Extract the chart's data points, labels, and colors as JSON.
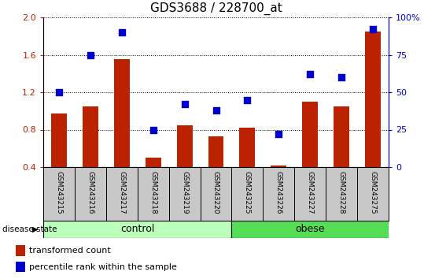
{
  "title": "GDS3688 / 228700_at",
  "samples": [
    "GSM243215",
    "GSM243216",
    "GSM243217",
    "GSM243218",
    "GSM243219",
    "GSM243220",
    "GSM243225",
    "GSM243226",
    "GSM243227",
    "GSM243228",
    "GSM243275"
  ],
  "bar_values": [
    0.97,
    1.05,
    1.55,
    0.5,
    0.85,
    0.73,
    0.82,
    0.42,
    1.1,
    1.05,
    1.85
  ],
  "scatter_values": [
    50,
    75,
    90,
    25,
    42,
    38,
    45,
    22,
    62,
    60,
    92
  ],
  "bar_color": "#BB2200",
  "scatter_color": "#0000CC",
  "ylim_left": [
    0.4,
    2.0
  ],
  "ylim_right": [
    0,
    100
  ],
  "yticks_left": [
    0.4,
    0.8,
    1.2,
    1.6,
    2.0
  ],
  "yticks_right": [
    0,
    25,
    50,
    75,
    100
  ],
  "ytick_labels_right": [
    "0",
    "25",
    "50",
    "75",
    "100%"
  ],
  "control_samples": 6,
  "obese_samples": 5,
  "control_label": "control",
  "obese_label": "obese",
  "group_label": "disease state",
  "legend_bar": "transformed count",
  "legend_scatter": "percentile rank within the sample",
  "control_color": "#BBFFBB",
  "obese_color": "#55DD55",
  "xlabel_area_color": "#C8C8C8",
  "bar_width": 0.5,
  "fig_width": 5.39,
  "fig_height": 3.54,
  "dpi": 100
}
